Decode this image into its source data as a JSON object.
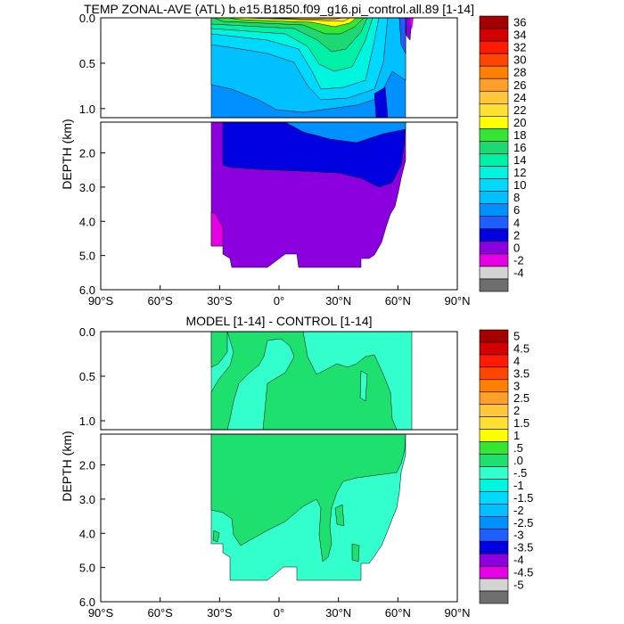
{
  "chart_data": [
    {
      "type": "contour",
      "title": "TEMP ZONAL-AVE (ATL) b.e15.B1850.f09_g16.pi_control.all.89 [1-14]",
      "ylabel": "DEPTH (km)",
      "x_ticks": [
        "90°S",
        "60°S",
        "30°S",
        "0°",
        "30°N",
        "60°N",
        "90°N"
      ],
      "x_values": [
        -90,
        -60,
        -30,
        0,
        30,
        60,
        90
      ],
      "y_ticks_upper": [
        "0.0",
        "0.5",
        "1.0"
      ],
      "y_ticks_upper_values": [
        0,
        0.5,
        1.0
      ],
      "y_ticks_lower": [
        "2.0",
        "3.0",
        "4.0",
        "5.0",
        "6.0"
      ],
      "y_ticks_lower_values": [
        2,
        3,
        4,
        5,
        6
      ],
      "xlim": [
        -90,
        90
      ],
      "ylim_upper": [
        0,
        1.1
      ],
      "ylim_lower": [
        1.1,
        6.0
      ],
      "colorbar": {
        "labels": [
          "36",
          "34",
          "32",
          "30",
          "28",
          "26",
          "24",
          "22",
          "20",
          "18",
          "16",
          "14",
          "12",
          "10",
          "8",
          "6",
          "4",
          "2",
          "0",
          "-2",
          "-4"
        ],
        "colors": [
          "#a50000",
          "#d40000",
          "#ff1a00",
          "#ff4500",
          "#ff7f00",
          "#ff9f2a",
          "#ffc83c",
          "#ffe032",
          "#ffff00",
          "#33e633",
          "#1ed873",
          "#00f0a8",
          "#00f5e1",
          "#00d9ff",
          "#00c0ff",
          "#0090ff",
          "#1f5fff",
          "#0000e0",
          "#8c00e0",
          "#e600e6",
          "#d3d3d3",
          "#6e6e6e"
        ]
      }
    },
    {
      "type": "contour",
      "title": "MODEL [1-14] - CONTROL [1-14]",
      "ylabel": "DEPTH (km)",
      "x_ticks": [
        "90°S",
        "60°S",
        "30°S",
        "0°",
        "30°N",
        "60°N",
        "90°N"
      ],
      "x_values": [
        -90,
        -60,
        -30,
        0,
        30,
        60,
        90
      ],
      "y_ticks_upper": [
        "0.0",
        "0.5",
        "1.0"
      ],
      "y_ticks_upper_values": [
        0,
        0.5,
        1.0
      ],
      "y_ticks_lower": [
        "2.0",
        "3.0",
        "4.0",
        "5.0",
        "6.0"
      ],
      "y_ticks_lower_values": [
        2,
        3,
        4,
        5,
        6
      ],
      "xlim": [
        -90,
        90
      ],
      "ylim_upper": [
        0,
        1.1
      ],
      "ylim_lower": [
        1.1,
        6.0
      ],
      "colorbar": {
        "labels": [
          "5",
          "4.5",
          "4",
          "3.5",
          "3",
          "2.5",
          "2",
          "1.5",
          "1",
          ".5",
          ".0",
          "-.5",
          "-1",
          "-1.5",
          "-2",
          "-2.5",
          "-3",
          "-3.5",
          "-4",
          "-4.5",
          "-5"
        ],
        "colors": [
          "#a50000",
          "#d40000",
          "#ff1a00",
          "#ff4500",
          "#ff7f00",
          "#ff9f2a",
          "#ffc83c",
          "#ffe032",
          "#ffff00",
          "#33e633",
          "#1ee06e",
          "#33ffcc",
          "#00f5e1",
          "#00d9ff",
          "#00c0ff",
          "#0090ff",
          "#1f5fff",
          "#0000e0",
          "#8c00e0",
          "#e600e6",
          "#d3d3d3",
          "#6e6e6e"
        ]
      }
    }
  ]
}
